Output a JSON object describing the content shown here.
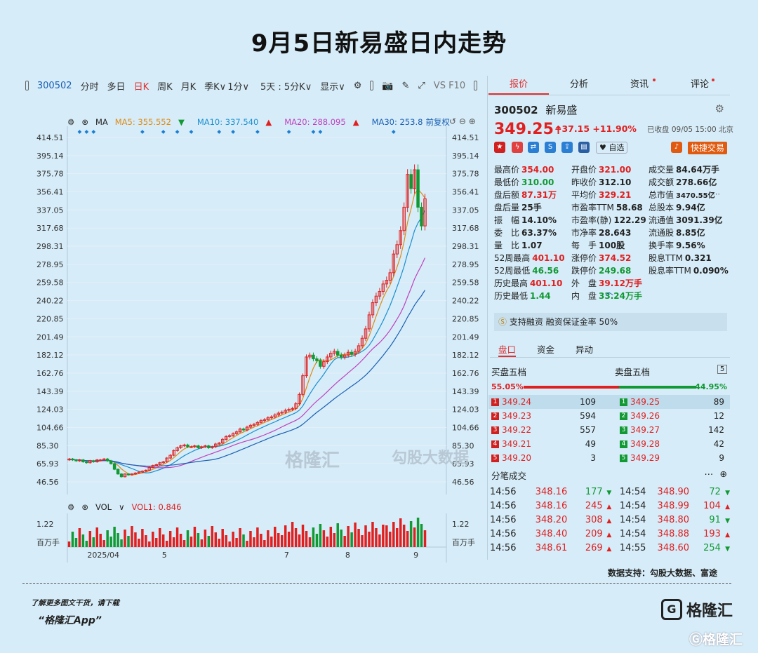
{
  "title": "9月5日新易盛日内走势",
  "toolbar": {
    "code": "300502",
    "items": [
      "分时",
      "多日",
      "日K",
      "周K",
      "月K",
      "季K∨",
      "1分∨",
      "5天 : 5分K∨",
      "显示∨"
    ],
    "active": "日K",
    "vs": "VS F10"
  },
  "tabs": [
    "报价",
    "分析",
    "资讯",
    "评论"
  ],
  "ma": {
    "label": "MA",
    "ma5": "MA5: 355.552",
    "ma10": "MA10: 337.540",
    "ma20": "MA20: 288.095",
    "ma30": "MA30: 253.8",
    "fuquan": "前复权"
  },
  "vol": {
    "label": "VOL",
    "vol1": "VOL1: 0.846",
    "max": "1.22",
    "unit": "百万手"
  },
  "stock": {
    "code": "300502",
    "name": "新易盛",
    "price": "349.25",
    "change": "+37.15",
    "pct": "+11.90%",
    "status": "已收盘 09/05 15:00 北京",
    "watch": "自选",
    "trade": "快捷交易"
  },
  "stats": [
    [
      "最高价",
      "354.00",
      "开盘价",
      "321.00",
      "成交量",
      "84.64万手"
    ],
    [
      "最低价",
      "310.00",
      "昨收价",
      "312.10",
      "成交额",
      "278.66亿"
    ],
    [
      "盘后额",
      "87.31万",
      "平均价",
      "329.21",
      "总市值",
      "3470.55亿"
    ],
    [
      "盘后量",
      "25手",
      "市盈率TTM",
      "58.68",
      "总股本",
      "9.94亿"
    ],
    [
      "振　幅",
      "14.10%",
      "市盈率(静)",
      "122.29",
      "流通值",
      "3091.39亿"
    ],
    [
      "委　比",
      "63.37%",
      "市净率",
      "28.643",
      "流通股",
      "8.85亿"
    ],
    [
      "量　比",
      "1.07",
      "每　手",
      "100股",
      "换手率",
      "9.56%"
    ],
    [
      "52周最高",
      "401.10",
      "涨停价",
      "374.52",
      "股息TTM",
      "0.321"
    ],
    [
      "52周最低",
      "46.56",
      "跌停价",
      "249.68",
      "股息率TTM",
      "0.090%"
    ],
    [
      "历史最高",
      "401.10",
      "外　盘",
      "39.12万手",
      "",
      ""
    ],
    [
      "历史最低",
      "1.44",
      "内　盘",
      "33.24万手",
      "",
      ""
    ]
  ],
  "margin_text": "支持融资 融资保证金率 50%",
  "subtabs": [
    "盘口",
    "资金",
    "异动"
  ],
  "orderbook": {
    "buy_title": "买盘五档",
    "sell_title": "卖盘五档",
    "buy_pct": "55.05%",
    "sell_pct": "44.95%",
    "rows": [
      [
        "1",
        "349.24",
        "109",
        "1",
        "349.25",
        "89"
      ],
      [
        "2",
        "349.23",
        "594",
        "2",
        "349.26",
        "12"
      ],
      [
        "3",
        "349.22",
        "557",
        "3",
        "349.27",
        "142"
      ],
      [
        "4",
        "349.21",
        "49",
        "4",
        "349.28",
        "42"
      ],
      [
        "5",
        "349.20",
        "3",
        "5",
        "349.29",
        "9"
      ]
    ]
  },
  "ticks_title": "分笔成交",
  "ticks": [
    [
      "14:56",
      "348.16",
      "177",
      "down",
      "14:54",
      "348.90",
      "72",
      "down"
    ],
    [
      "14:56",
      "348.16",
      "245",
      "up",
      "14:54",
      "348.99",
      "104",
      "up"
    ],
    [
      "14:56",
      "348.20",
      "308",
      "up",
      "14:54",
      "348.80",
      "91",
      "down"
    ],
    [
      "14:56",
      "348.40",
      "209",
      "up",
      "14:54",
      "348.88",
      "193",
      "up"
    ],
    [
      "14:56",
      "348.61",
      "269",
      "up",
      "14:55",
      "348.60",
      "254",
      "down"
    ]
  ],
  "source": "数据支持：勾股大数据、富途",
  "footer": {
    "line1": "了解更多图文干货，请下载",
    "line2": "“格隆汇App”",
    "logo": "格隆汇",
    "watermark": "格隆汇"
  },
  "watermark_mid": [
    "格隆汇",
    "勾股大数据"
  ],
  "chart_data": {
    "type": "candlestick",
    "y_ticks": [
      "414.51",
      "395.14",
      "375.78",
      "356.41",
      "337.05",
      "317.68",
      "298.31",
      "278.95",
      "259.58",
      "240.22",
      "220.85",
      "201.49",
      "182.12",
      "162.76",
      "143.39",
      "124.03",
      "104.66",
      "85.30",
      "65.93",
      "46.56"
    ],
    "x_labels": [
      "2025/04",
      "5",
      "7",
      "8",
      "9"
    ],
    "close": [
      71,
      70,
      69,
      70,
      68,
      67,
      69,
      68,
      70,
      70,
      71,
      69,
      66,
      60,
      55,
      52,
      55,
      54,
      55,
      56,
      57,
      58,
      59,
      62,
      64,
      65,
      67,
      68,
      72,
      75,
      80,
      83,
      85,
      86,
      84,
      84,
      85,
      83,
      84,
      85,
      83,
      84,
      87,
      88,
      92,
      95,
      96,
      98,
      100,
      103,
      102,
      105,
      107,
      108,
      110,
      112,
      113,
      115,
      116,
      118,
      120,
      121,
      123,
      124,
      125,
      130,
      140,
      160,
      180,
      182,
      178,
      176,
      170,
      175,
      180,
      184,
      186,
      182,
      180,
      182,
      185,
      183,
      186,
      192,
      200,
      210,
      225,
      238,
      245,
      250,
      258,
      262,
      270,
      290,
      300,
      315,
      340,
      375,
      360,
      380,
      340,
      320,
      349
    ],
    "ma5_end": 355.552,
    "ma10_end": 337.54,
    "ma20_end": 288.095,
    "ma30_end": 253.8,
    "ymin": 46.56,
    "ymax": 414.51,
    "volume_max": 1.22
  }
}
